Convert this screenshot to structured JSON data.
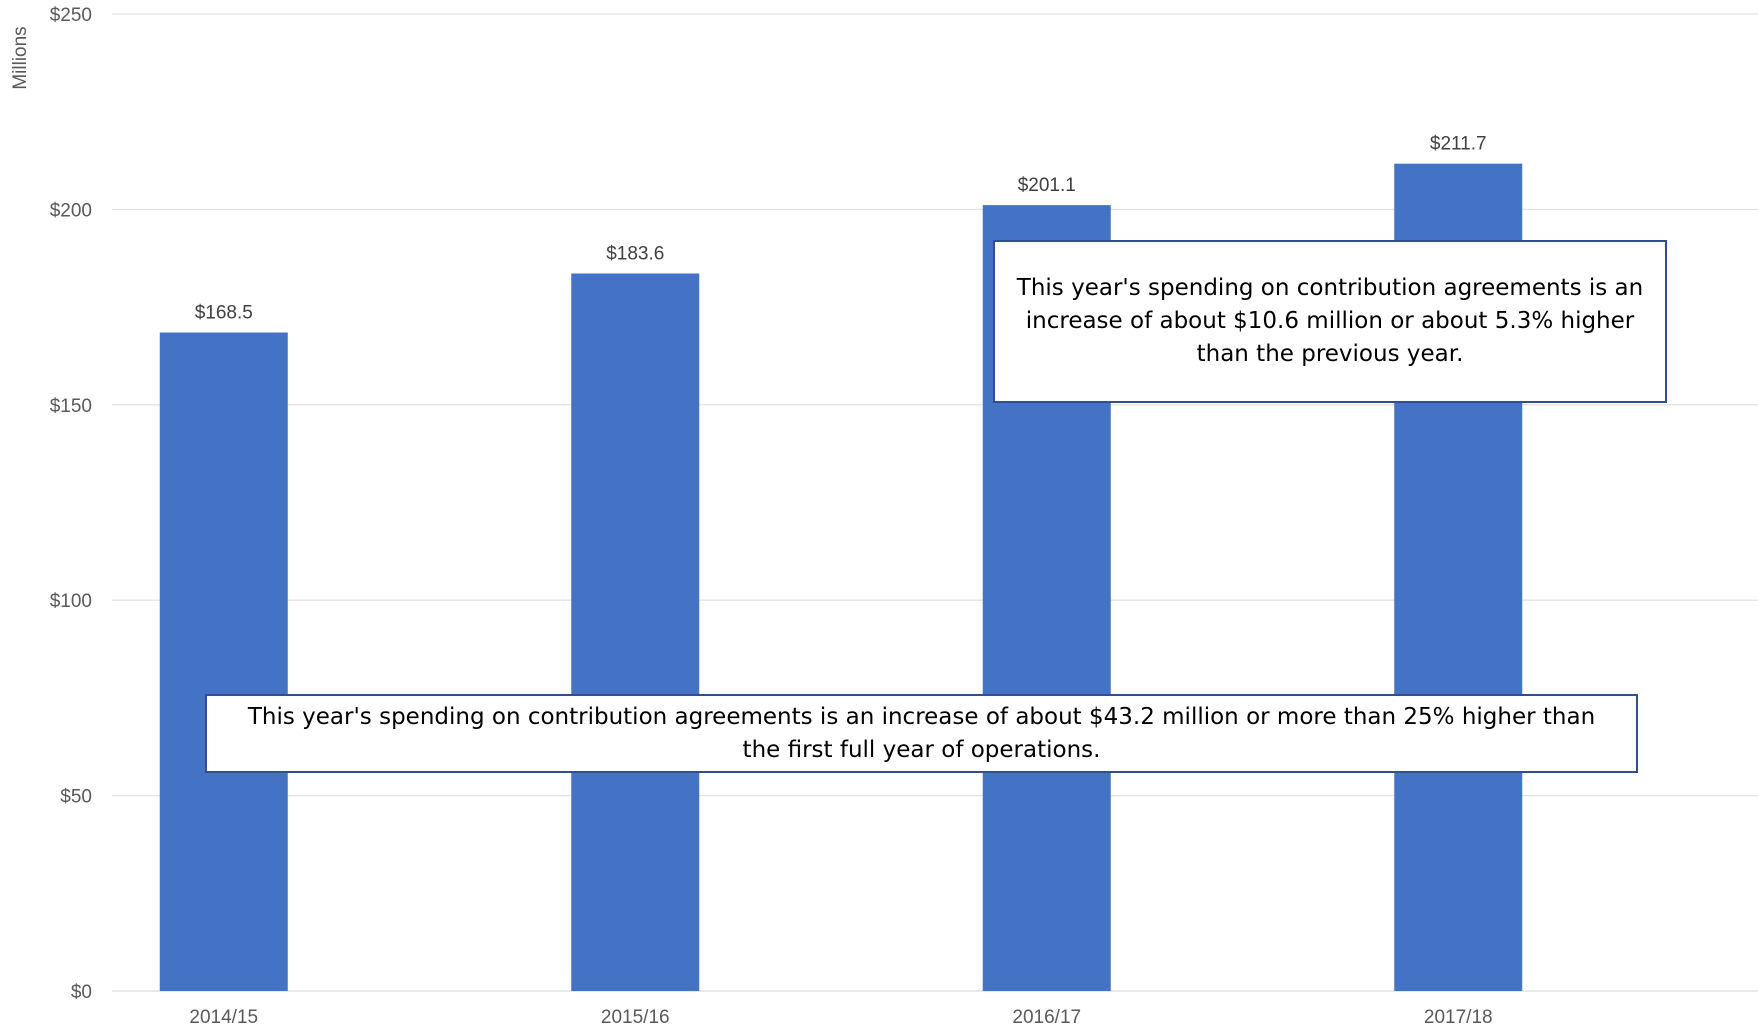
{
  "chart_data": {
    "type": "bar",
    "title": "",
    "ylabel": "Millions",
    "xlabel": "",
    "categories": [
      "2014/15",
      "2015/16",
      "2016/17",
      "2017/18"
    ],
    "values": [
      168.5,
      183.6,
      201.1,
      211.7
    ],
    "data_labels": [
      "$168.5",
      "$183.6",
      "$201.1",
      "$211.7"
    ],
    "ylim": [
      0,
      250
    ],
    "yticks": [
      0,
      50,
      100,
      150,
      200,
      250
    ],
    "ytick_labels": [
      "$0",
      "$50",
      "$100",
      "$150",
      "$200",
      "$250"
    ],
    "grid": true,
    "legend": "none",
    "bar_color": "#4472C4",
    "annotations": [
      "This year's spending on contribution agreements is an increase of about $10.6 million or about 5.3% higher than the previous year.",
      "This year's spending on contribution agreements is an increase of about $43.2 million or more than 25% higher than the first full year of operations."
    ]
  }
}
